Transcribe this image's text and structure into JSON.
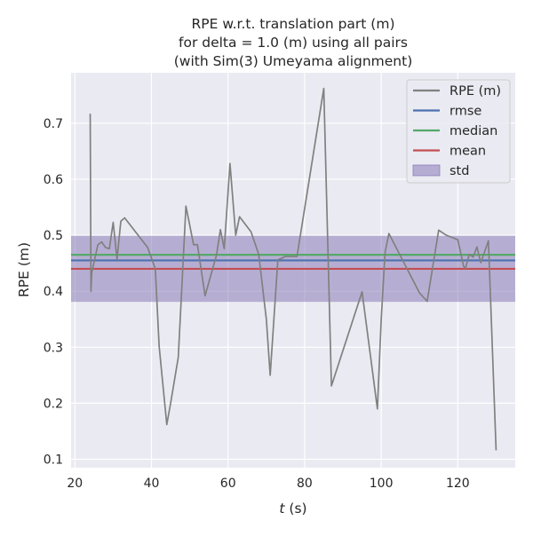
{
  "chart_data": {
    "type": "line",
    "title_lines": [
      "RPE w.r.t. translation part (m)",
      "for delta = 1.0 (m) using all pairs",
      "(with Sim(3) Umeyama alignment)"
    ],
    "xlabel": "t (s)",
    "xlabel_var": "t",
    "xlabel_unit": " (s)",
    "ylabel": "RPE (m)",
    "xlim": [
      19,
      135
    ],
    "ylim": [
      0.085,
      0.79
    ],
    "xticks": [
      20,
      40,
      60,
      80,
      100,
      120
    ],
    "yticks": [
      0.1,
      0.2,
      0.3,
      0.4,
      0.5,
      0.6,
      0.7
    ],
    "ytick_labels": [
      "0.1",
      "0.2",
      "0.3",
      "0.4",
      "0.5",
      "0.6",
      "0.7"
    ],
    "grid": true,
    "legend_position": "top-right",
    "legend": [
      {
        "label": "RPE (m)",
        "kind": "line",
        "color": "#808080"
      },
      {
        "label": "rmse",
        "kind": "line",
        "color": "#4c72b0"
      },
      {
        "label": "median",
        "kind": "line",
        "color": "#55a868"
      },
      {
        "label": "mean",
        "kind": "line",
        "color": "#c44e52"
      },
      {
        "label": "std",
        "kind": "patch",
        "color": "#8172b2"
      }
    ],
    "series": [
      {
        "name": "RPE (m)",
        "color": "#808080",
        "x": [
          24,
          24.2,
          24.4,
          26,
          27,
          28,
          29,
          30,
          31,
          32,
          33,
          39,
          41,
          42,
          44,
          45,
          47,
          49,
          51,
          52,
          54,
          57,
          58,
          59,
          60.5,
          62,
          63,
          66,
          68,
          70,
          71,
          73,
          75,
          78,
          85,
          87,
          95,
          99,
          100,
          101,
          102,
          110,
          112,
          115,
          117,
          120,
          121.5,
          122,
          123,
          124,
          125,
          126,
          128,
          130
        ],
        "y": [
          0.717,
          0.4,
          0.433,
          0.483,
          0.488,
          0.478,
          0.476,
          0.523,
          0.457,
          0.525,
          0.531,
          0.478,
          0.44,
          0.302,
          0.162,
          0.2,
          0.282,
          0.552,
          0.483,
          0.483,
          0.392,
          0.465,
          0.51,
          0.476,
          0.628,
          0.5,
          0.533,
          0.506,
          0.466,
          0.35,
          0.25,
          0.456,
          0.462,
          0.462,
          0.762,
          0.231,
          0.399,
          0.19,
          0.35,
          0.469,
          0.503,
          0.397,
          0.382,
          0.509,
          0.5,
          0.492,
          0.445,
          0.441,
          0.466,
          0.461,
          0.479,
          0.451,
          0.49,
          0.116
        ]
      }
    ],
    "stats": {
      "rmse": 0.455,
      "median": 0.465,
      "mean": 0.44,
      "std": 0.059
    }
  }
}
